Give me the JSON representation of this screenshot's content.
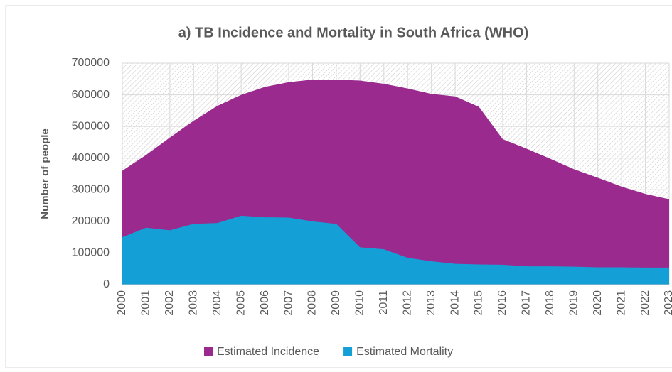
{
  "chart_data": {
    "type": "area",
    "title": "a) TB Incidence and Mortality in South Africa (WHO)",
    "ylabel": "Number of people",
    "categories": [
      "2000",
      "2001",
      "2002",
      "2003",
      "2004",
      "2005",
      "2006",
      "2007",
      "2008",
      "2009",
      "2010",
      "2011",
      "2012",
      "2013",
      "2014",
      "2015",
      "2016",
      "2017",
      "2018",
      "2019",
      "2020",
      "2021",
      "2022",
      "2023"
    ],
    "series": [
      {
        "name": "Estimated Incidence",
        "color": "#9b2a8f",
        "values": [
          360000,
          410000,
          465000,
          518000,
          565000,
          600000,
          625000,
          640000,
          648000,
          648000,
          645000,
          635000,
          620000,
          603000,
          595000,
          562000,
          460000,
          430000,
          398000,
          365000,
          338000,
          310000,
          287000,
          270000
        ]
      },
      {
        "name": "Estimated Mortality",
        "color": "#14a0d6",
        "values": [
          150000,
          180000,
          172000,
          192000,
          195000,
          218000,
          213000,
          212000,
          200000,
          192000,
          118000,
          112000,
          85000,
          74000,
          66000,
          64000,
          63000,
          58000,
          58000,
          57000,
          55000,
          55000,
          54000,
          54000
        ]
      }
    ],
    "ylim": [
      0,
      700000
    ],
    "yticks": [
      0,
      100000,
      200000,
      300000,
      400000,
      500000,
      600000,
      700000
    ],
    "grid": true,
    "legend": "bottom"
  }
}
